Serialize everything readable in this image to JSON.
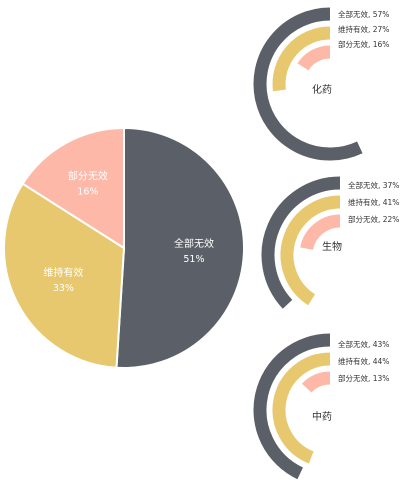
{
  "colors": {
    "gray": "#5a5f68",
    "gold": "#e8c86e",
    "pink": "#fdb8a8",
    "white": "#ffffff",
    "label_dark": "#333333"
  },
  "chart_data": [
    {
      "type": "pie",
      "title": "",
      "slices": [
        {
          "label": "全部无效",
          "percent": "51%",
          "value": 51,
          "color_key": "gray"
        },
        {
          "label": "维持有效",
          "percent": "33%",
          "value": 33,
          "color_key": "gold"
        },
        {
          "label": "部分无效",
          "percent": "16%",
          "value": 16,
          "color_key": "pink"
        }
      ]
    },
    {
      "type": "radial-bar",
      "title": "化药",
      "series": [
        {
          "name": "全部无效",
          "label": "全部无效, 57%",
          "value": 57,
          "color_key": "gray"
        },
        {
          "name": "维持有效",
          "label": "维持有效, 27%",
          "value": 27,
          "color_key": "gold"
        },
        {
          "name": "部分无效",
          "label": "部分无效, 16%",
          "value": 16,
          "color_key": "pink"
        }
      ]
    },
    {
      "type": "radial-bar",
      "title": "生物",
      "series": [
        {
          "name": "全部无效",
          "label": "全部无效, 37%",
          "value": 37,
          "color_key": "gray"
        },
        {
          "name": "维持有效",
          "label": "维持有效, 41%",
          "value": 41,
          "color_key": "gold"
        },
        {
          "name": "部分无效",
          "label": "部分无效, 22%",
          "value": 22,
          "color_key": "pink"
        }
      ]
    },
    {
      "type": "radial-bar",
      "title": "中药",
      "series": [
        {
          "name": "全部无效",
          "label": "全部无效, 43%",
          "value": 43,
          "color_key": "gray"
        },
        {
          "name": "维持有效",
          "label": "维持有效, 44%",
          "value": 44,
          "color_key": "gold"
        },
        {
          "name": "部分无效",
          "label": "部分无效, 13%",
          "value": 13,
          "color_key": "pink"
        }
      ]
    }
  ]
}
